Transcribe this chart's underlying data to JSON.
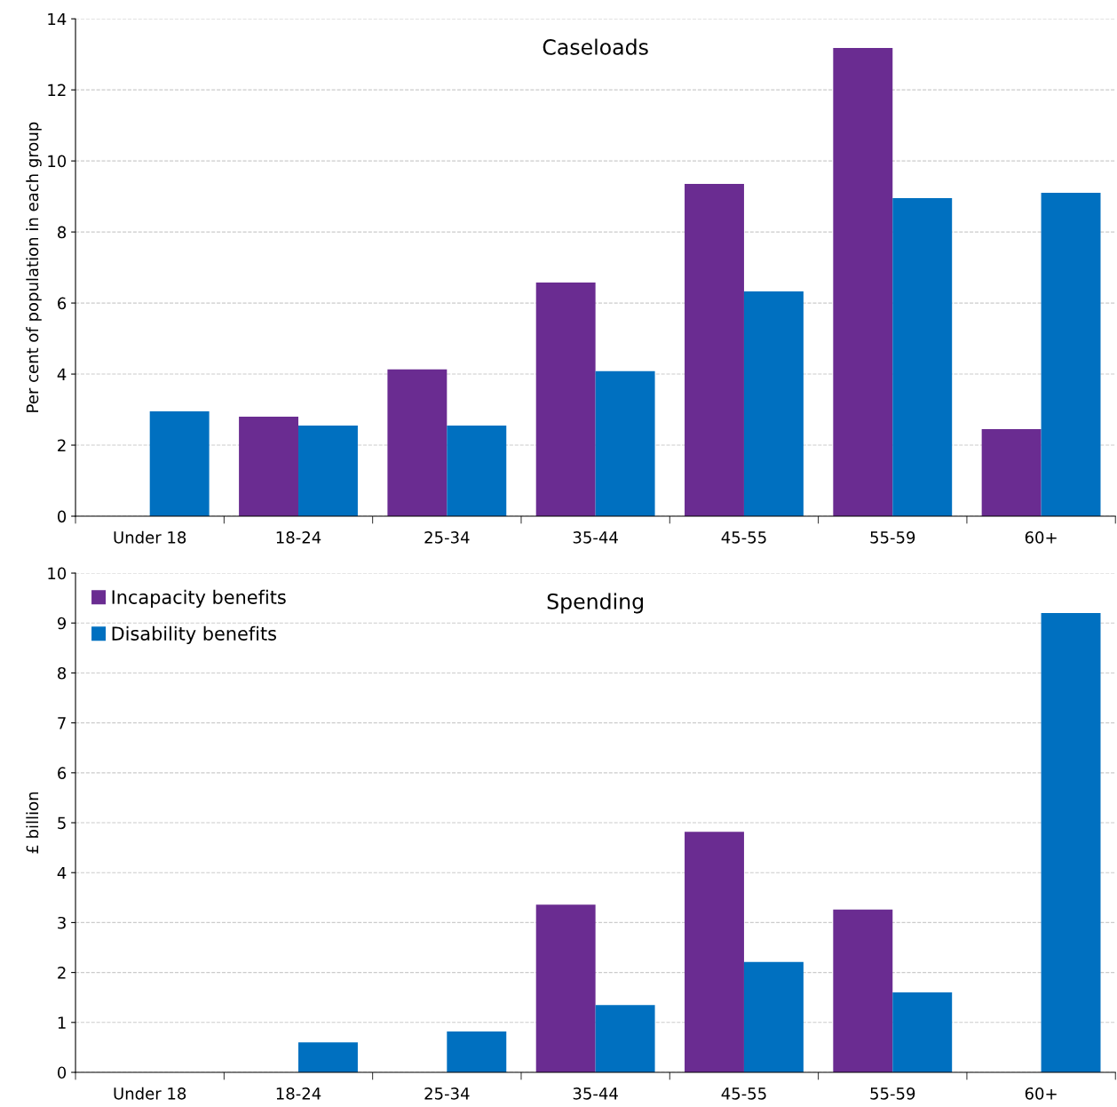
{
  "chart_data": [
    {
      "type": "bar",
      "title": "Caseloads",
      "ylabel": "Per cent of population in each group",
      "categories": [
        "Under 18",
        "18-24",
        "25-34",
        "35-44",
        "45-55",
        "55-59",
        "60+"
      ],
      "series": [
        {
          "color": "#6a2c91",
          "values": [
            null,
            2.8,
            4.13,
            6.58,
            9.35,
            13.18,
            2.45
          ]
        },
        {
          "color": "#0070c0",
          "values": [
            2.95,
            2.55,
            2.55,
            4.08,
            6.33,
            8.95,
            9.1
          ]
        }
      ],
      "ylim": [
        0,
        14
      ],
      "yticks": [
        0,
        2,
        4,
        6,
        8,
        10,
        12,
        14
      ],
      "grid": "y",
      "legend": false
    },
    {
      "type": "bar",
      "title": "Spending",
      "ylabel": "£ billion",
      "categories": [
        "Under 18",
        "18-24",
        "25-34",
        "35-44",
        "45-55",
        "55-59",
        "60+"
      ],
      "series": [
        {
          "name": "Incapacity benefits",
          "color": "#6a2c91",
          "values": [
            null,
            null,
            null,
            3.36,
            4.82,
            3.26,
            null
          ]
        },
        {
          "name": "Disability benefits",
          "color": "#0070c0",
          "values": [
            null,
            0.6,
            0.82,
            1.35,
            2.21,
            1.6,
            9.2
          ]
        }
      ],
      "ylim": [
        0,
        10
      ],
      "yticks": [
        0,
        1,
        2,
        3,
        4,
        5,
        6,
        7,
        8,
        9,
        10
      ],
      "grid": "y",
      "legend": "top left"
    }
  ]
}
